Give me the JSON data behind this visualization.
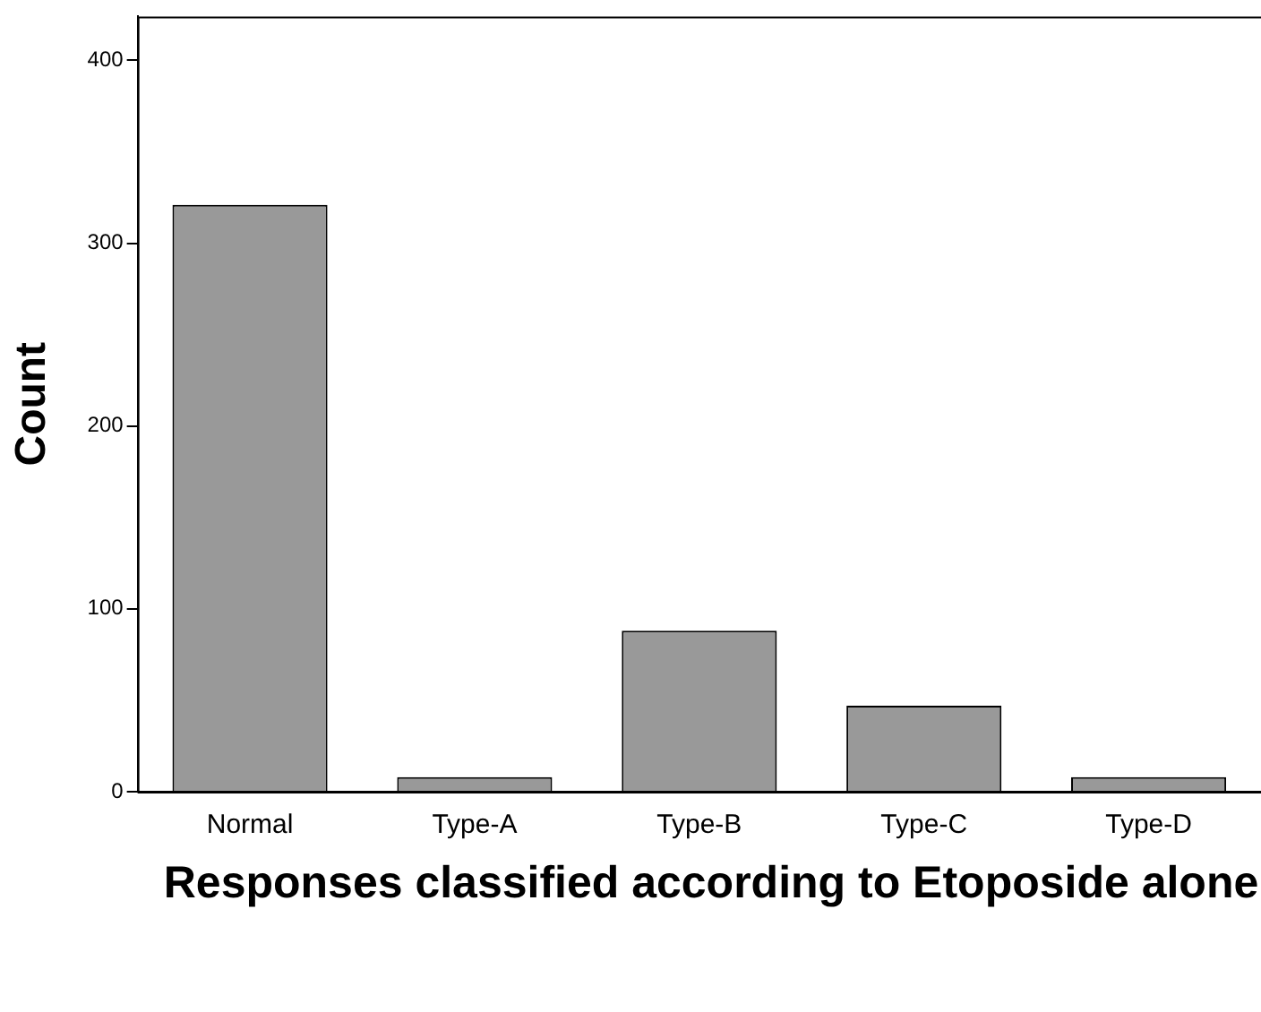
{
  "chart_data": {
    "type": "bar",
    "xlabel": "Responses classified according to Etoposide alone",
    "ylabel": "Count",
    "categories": [
      "Normal",
      "Type-A",
      "Type-B",
      "Type-C",
      "Type-D"
    ],
    "values": [
      321,
      8,
      88,
      47,
      8
    ],
    "color": "#999999",
    "ylim": [
      0,
      424
    ],
    "yticks": [
      0,
      100,
      200,
      300,
      400
    ],
    "grid": false,
    "legend": false
  }
}
